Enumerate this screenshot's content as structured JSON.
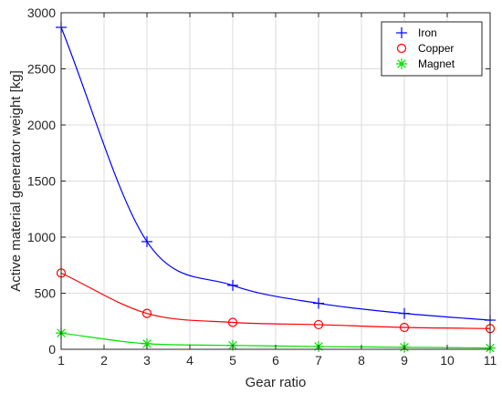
{
  "chart_data": {
    "type": "line",
    "xlabel": "Gear ratio",
    "ylabel": "Active material generator weight [kg]",
    "xlim": [
      1,
      11
    ],
    "ylim": [
      0,
      3000
    ],
    "xticks": [
      1,
      2,
      3,
      4,
      5,
      6,
      7,
      8,
      9,
      10,
      11
    ],
    "yticks": [
      0,
      500,
      1000,
      1500,
      2000,
      2500,
      3000
    ],
    "grid": true,
    "legend_position": "top-right",
    "series": [
      {
        "name": "Iron",
        "marker": "plus",
        "color": "#0000ff",
        "x": [
          1,
          3,
          5,
          7,
          9,
          11
        ],
        "y": [
          2870,
          960,
          570,
          410,
          320,
          260
        ]
      },
      {
        "name": "Copper",
        "marker": "circle",
        "color": "#ff0000",
        "x": [
          1,
          3,
          5,
          7,
          9,
          11
        ],
        "y": [
          680,
          320,
          240,
          220,
          195,
          185
        ]
      },
      {
        "name": "Magnet",
        "marker": "asterisk",
        "color": "#00e000",
        "x": [
          1,
          3,
          5,
          7,
          9,
          11
        ],
        "y": [
          145,
          50,
          35,
          25,
          18,
          12
        ]
      }
    ]
  }
}
